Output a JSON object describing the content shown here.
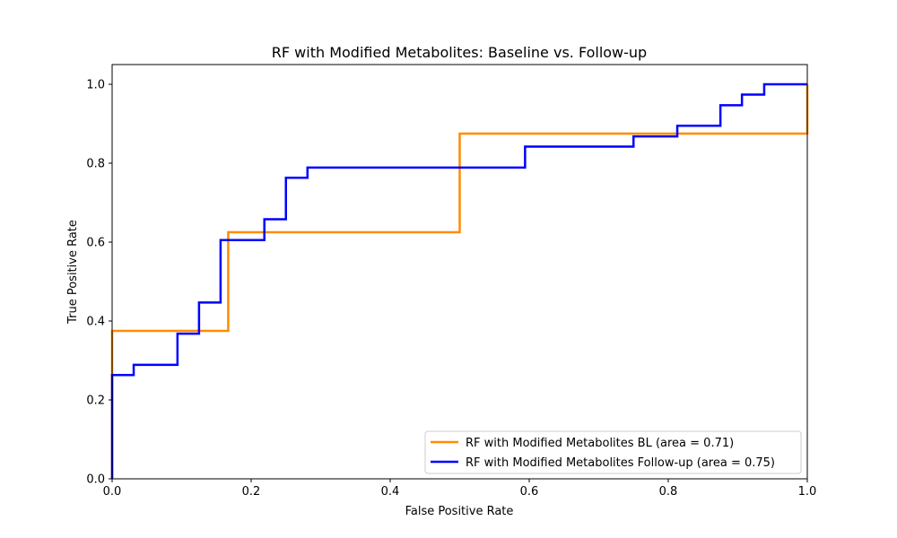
{
  "chart_data": {
    "type": "line",
    "title": "RF with Modified Metabolites: Baseline vs. Follow-up",
    "xlabel": "False Positive Rate",
    "ylabel": "True Positive Rate",
    "xlim": [
      0.0,
      1.0
    ],
    "ylim": [
      0.0,
      1.05
    ],
    "xticks": [
      "0.0",
      "0.2",
      "0.4",
      "0.6",
      "0.8",
      "1.0"
    ],
    "yticks": [
      "0.0",
      "0.2",
      "0.4",
      "0.6",
      "0.8",
      "1.0"
    ],
    "grid": false,
    "legend_position": "lower-right",
    "series": [
      {
        "name": "RF with Modified Metabolites BL (area = 0.71)",
        "color": "#ff8c00",
        "x": [
          0.0,
          0.0,
          0.167,
          0.167,
          0.5,
          0.5,
          1.0,
          1.0
        ],
        "y": [
          0.0,
          0.375,
          0.375,
          0.625,
          0.625,
          0.875,
          0.875,
          1.0
        ]
      },
      {
        "name": "RF with Modified Metabolites Follow-up (area = 0.75)",
        "color": "#0000ff",
        "x": [
          0.0,
          0.0,
          0.031,
          0.031,
          0.094,
          0.094,
          0.125,
          0.125,
          0.156,
          0.156,
          0.219,
          0.219,
          0.25,
          0.25,
          0.281,
          0.281,
          0.594,
          0.594,
          0.75,
          0.75,
          0.813,
          0.813,
          0.875,
          0.875,
          0.906,
          0.906,
          0.938,
          0.938,
          1.0
        ],
        "y": [
          0.0,
          0.263,
          0.263,
          0.289,
          0.289,
          0.368,
          0.368,
          0.447,
          0.447,
          0.605,
          0.605,
          0.658,
          0.658,
          0.763,
          0.763,
          0.789,
          0.789,
          0.842,
          0.842,
          0.868,
          0.868,
          0.895,
          0.895,
          0.947,
          0.947,
          0.974,
          0.974,
          1.0,
          1.0
        ]
      }
    ]
  }
}
